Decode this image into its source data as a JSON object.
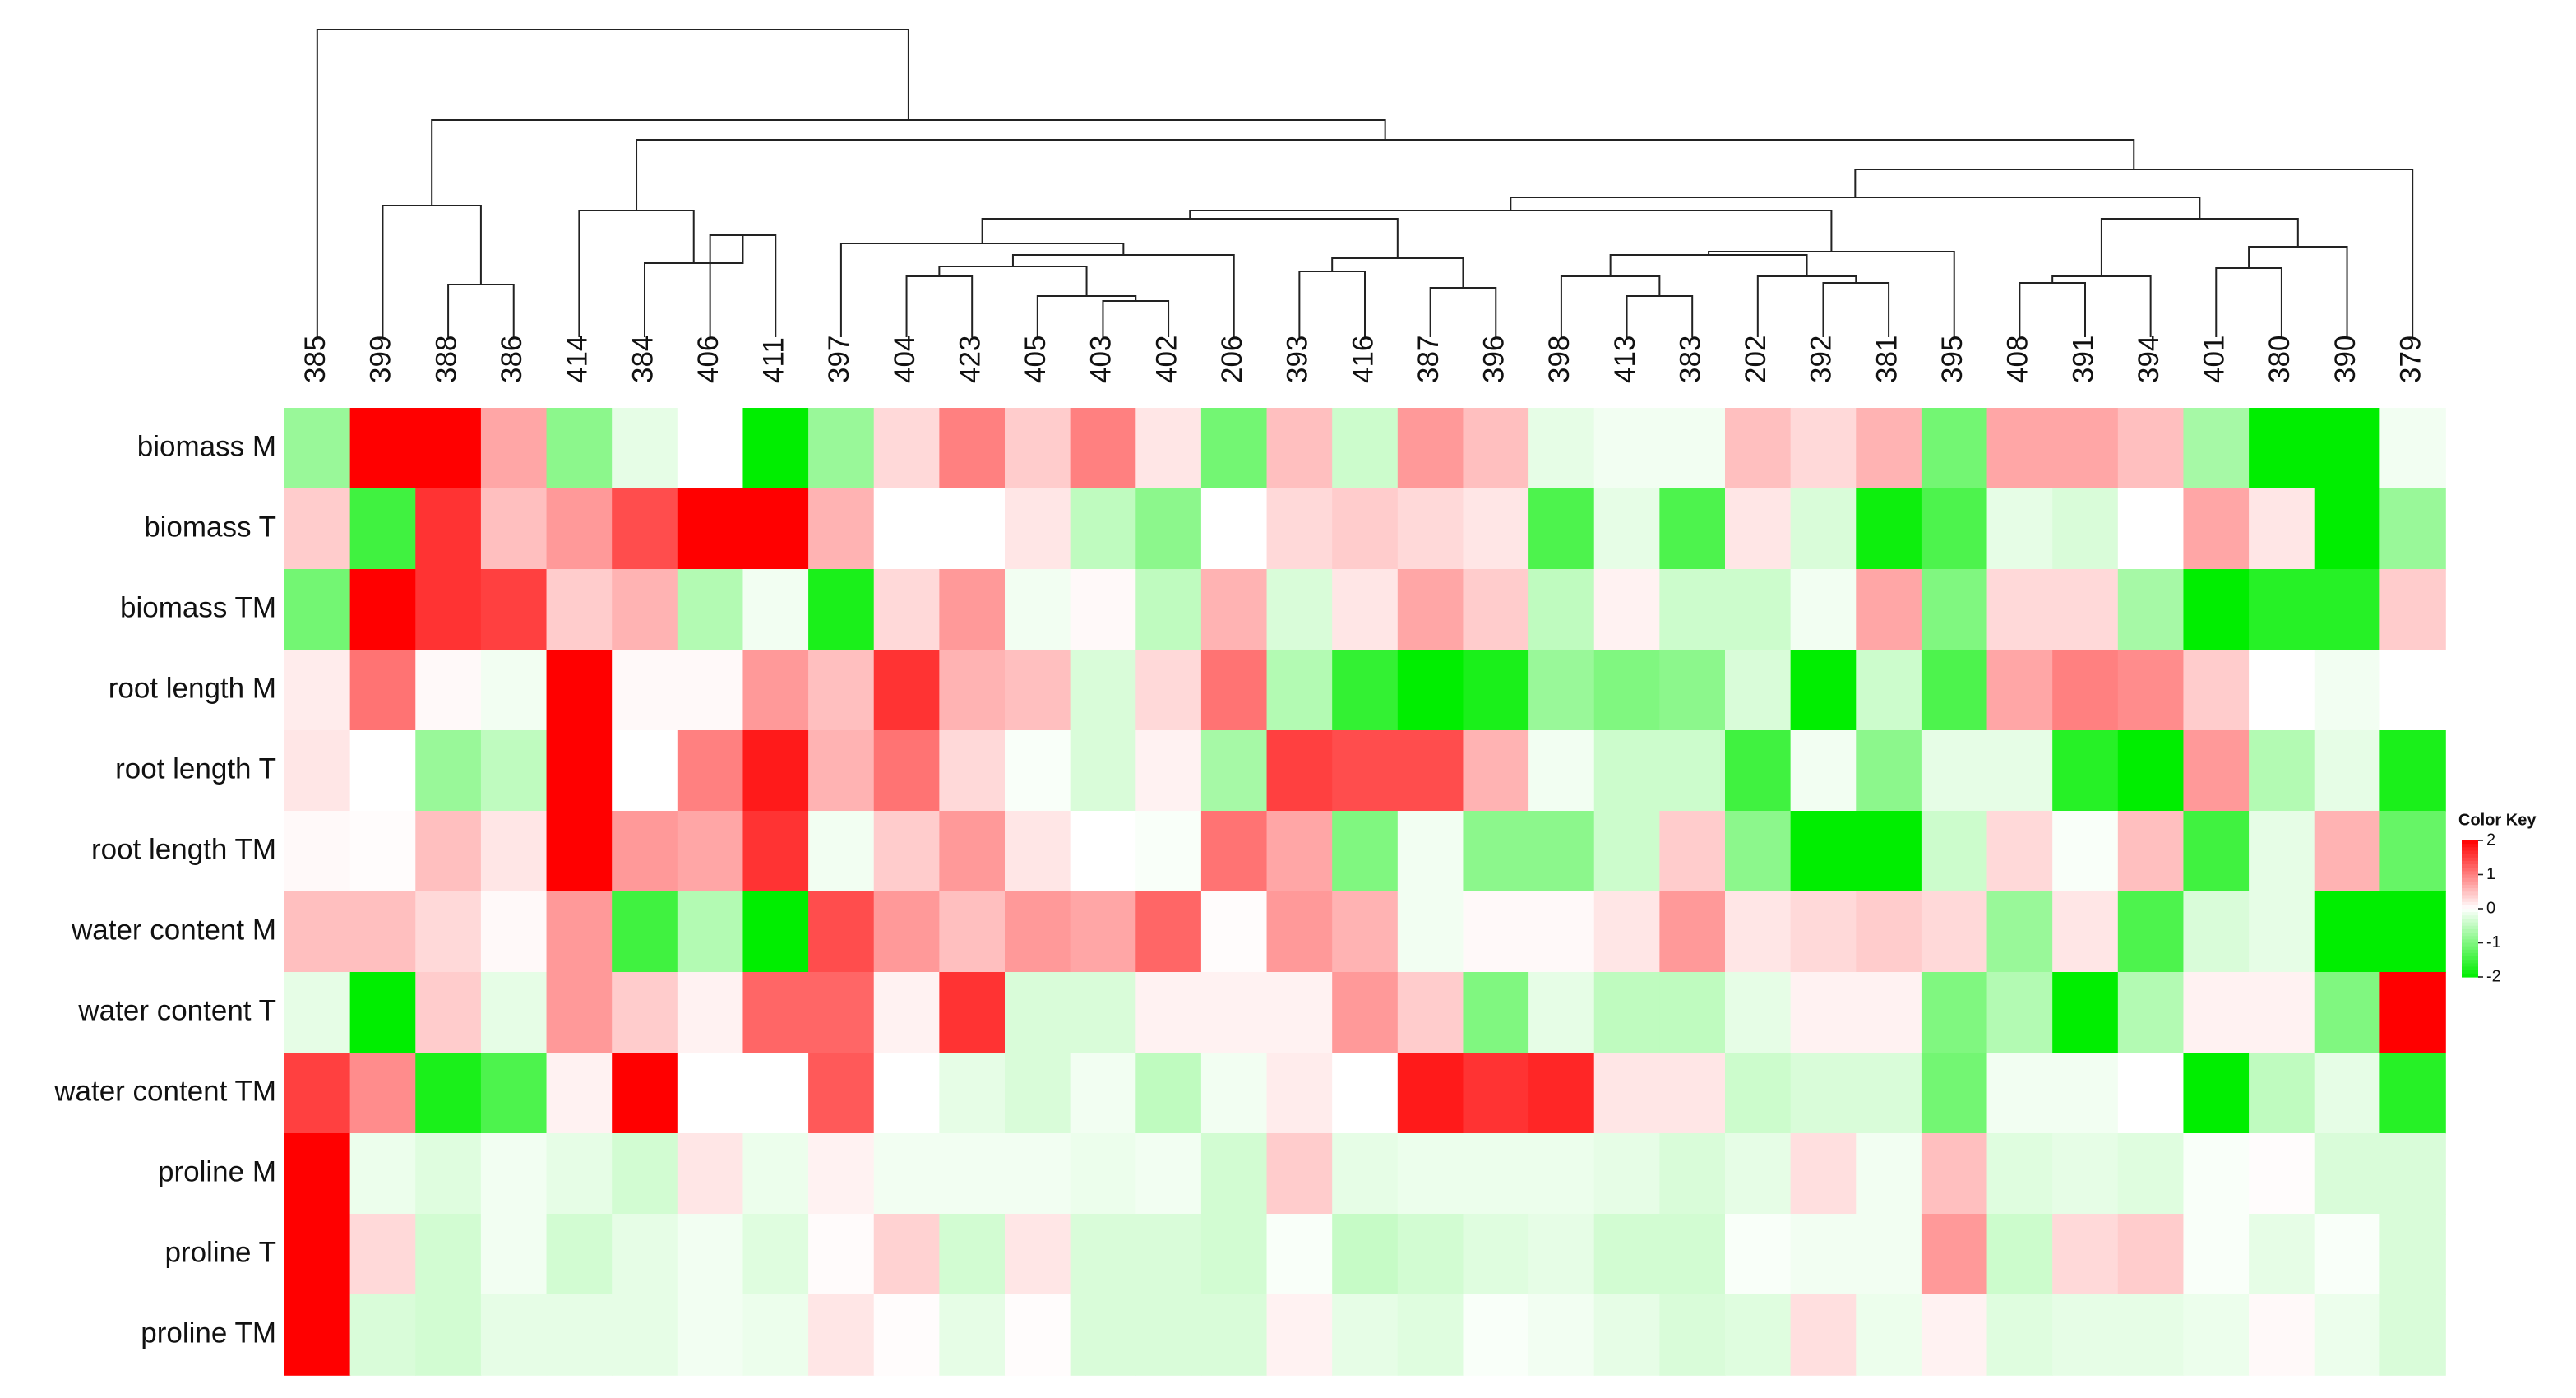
{
  "chart_data": {
    "type": "heatmap",
    "columns": [
      "385",
      "399",
      "388",
      "386",
      "414",
      "384",
      "406",
      "411",
      "397",
      "404",
      "423",
      "405",
      "403",
      "402",
      "206",
      "393",
      "416",
      "387",
      "396",
      "398",
      "413",
      "383",
      "202",
      "392",
      "381",
      "395",
      "408",
      "391",
      "394",
      "401",
      "380",
      "390",
      "379"
    ],
    "rows": [
      "biomass M",
      "biomass T",
      "biomass TM",
      "root length M",
      "root length T",
      "root length TM",
      "water content M",
      "water content T",
      "water content TM",
      "proline M",
      "proline T",
      "proline TM"
    ],
    "values": [
      [
        -0.8,
        2,
        2,
        0.7,
        -0.9,
        -0.2,
        0,
        -2,
        -0.8,
        0.3,
        1.0,
        0.4,
        1.0,
        0.2,
        -1.1,
        0.5,
        -0.4,
        0.8,
        0.5,
        -0.2,
        -0.1,
        -0.1,
        0.5,
        0.3,
        0.6,
        -1.1,
        0.7,
        0.7,
        0.5,
        -0.7,
        -2,
        -2,
        -0.1
      ],
      [
        0.4,
        -1.5,
        1.6,
        0.5,
        0.8,
        1.4,
        2,
        2,
        0.6,
        0,
        0,
        0.2,
        -0.5,
        -0.9,
        0,
        0.3,
        0.4,
        0.3,
        0.2,
        -1.4,
        -0.2,
        -1.4,
        0.2,
        -0.3,
        -1.9,
        -1.4,
        -0.2,
        -0.3,
        0,
        0.7,
        0.2,
        -2,
        -0.8
      ],
      [
        -1.1,
        2,
        1.6,
        1.5,
        0.4,
        0.6,
        -0.6,
        -0.1,
        -1.8,
        0.3,
        0.8,
        -0.1,
        0.05,
        -0.5,
        0.6,
        -0.3,
        0.2,
        0.7,
        0.4,
        -0.5,
        0.1,
        -0.4,
        -0.4,
        -0.1,
        0.7,
        -1.0,
        0.3,
        0.3,
        -0.7,
        -2,
        -1.7,
        -1.7,
        0.4
      ],
      [
        0.15,
        1.1,
        0.05,
        -0.1,
        2,
        0.05,
        0.05,
        0.8,
        0.5,
        1.6,
        0.6,
        0.5,
        -0.3,
        0.3,
        1.1,
        -0.6,
        -1.6,
        -2,
        -1.8,
        -0.8,
        -1.0,
        -0.9,
        -0.3,
        -2,
        -0.4,
        -1.4,
        0.7,
        1.0,
        0.9,
        0.4,
        0,
        -0.1,
        0
      ],
      [
        0.2,
        0,
        -0.8,
        -0.5,
        2,
        0,
        1.0,
        1.8,
        0.6,
        1.1,
        0.3,
        -0.05,
        -0.3,
        0.1,
        -0.7,
        1.5,
        1.4,
        1.4,
        0.6,
        -0.1,
        -0.4,
        -0.4,
        -1.5,
        -0.1,
        -0.9,
        -0.2,
        -0.2,
        -1.7,
        -2,
        0.8,
        -0.6,
        -0.2,
        -1.8
      ],
      [
        0.05,
        0.02,
        0.5,
        0.2,
        2,
        0.8,
        0.7,
        1.6,
        -0.1,
        0.4,
        0.8,
        0.2,
        0,
        -0.05,
        1.1,
        0.7,
        -1.0,
        -0.1,
        -0.9,
        -0.9,
        -0.4,
        0.4,
        -0.9,
        -2,
        -2,
        -0.4,
        0.3,
        -0.05,
        0.5,
        -1.5,
        -0.2,
        0.6,
        -1.2
      ],
      [
        0.5,
        0.5,
        0.3,
        0.05,
        0.8,
        -1.5,
        -0.6,
        -2,
        1.4,
        0.8,
        0.5,
        0.8,
        0.7,
        1.2,
        0.02,
        0.8,
        0.6,
        -0.1,
        0.05,
        0.05,
        0.2,
        0.8,
        0.2,
        0.3,
        0.4,
        0.3,
        -0.8,
        0.2,
        -1.4,
        -0.3,
        -0.2,
        -2,
        -2
      ],
      [
        -0.2,
        -2,
        0.4,
        -0.2,
        0.8,
        0.4,
        0.1,
        1.2,
        1.2,
        0.1,
        1.6,
        -0.3,
        -0.3,
        0.1,
        0.1,
        0.1,
        0.8,
        0.4,
        -1.0,
        -0.2,
        -0.5,
        -0.5,
        -0.2,
        0.1,
        0.1,
        -1.0,
        -0.6,
        -2,
        -0.6,
        0.1,
        0.1,
        -1.0,
        2
      ],
      [
        1.5,
        0.9,
        -1.8,
        -1.4,
        0.1,
        2,
        0,
        0,
        1.3,
        0,
        -0.2,
        -0.3,
        -0.1,
        -0.5,
        -0.1,
        0.15,
        0,
        1.8,
        1.6,
        1.7,
        0.2,
        0.2,
        -0.4,
        -0.3,
        -0.3,
        -1.1,
        -0.1,
        -0.1,
        0,
        -2,
        -0.5,
        -0.2,
        -1.7
      ],
      [
        2,
        -0.15,
        -0.25,
        -0.1,
        -0.2,
        -0.35,
        0.2,
        -0.15,
        0.1,
        -0.1,
        -0.1,
        -0.1,
        -0.15,
        -0.1,
        -0.35,
        0.4,
        -0.2,
        -0.15,
        -0.15,
        -0.15,
        -0.2,
        -0.3,
        -0.2,
        0.25,
        -0.1,
        0.5,
        -0.25,
        -0.2,
        -0.25,
        -0.05,
        0.02,
        -0.3,
        -0.3
      ],
      [
        2,
        0.3,
        -0.35,
        -0.1,
        -0.35,
        -0.2,
        -0.1,
        -0.25,
        0.03,
        0.35,
        -0.35,
        0.2,
        -0.3,
        -0.3,
        -0.35,
        -0.05,
        -0.45,
        -0.35,
        -0.25,
        -0.2,
        -0.35,
        -0.35,
        -0.05,
        -0.1,
        -0.1,
        0.8,
        -0.4,
        0.3,
        0.4,
        -0.05,
        -0.2,
        -0.05,
        -0.3
      ],
      [
        2,
        -0.3,
        -0.35,
        -0.2,
        -0.2,
        -0.2,
        -0.1,
        -0.15,
        0.2,
        0.02,
        -0.2,
        0.02,
        -0.3,
        -0.3,
        -0.3,
        0.1,
        -0.2,
        -0.25,
        -0.05,
        -0.1,
        -0.2,
        -0.3,
        -0.25,
        0.25,
        -0.15,
        0.1,
        -0.25,
        -0.2,
        -0.2,
        -0.15,
        0.05,
        -0.15,
        -0.3
      ]
    ],
    "colormap": {
      "low": "#00ee00",
      "mid": "#ffffff",
      "high": "#ff0000"
    },
    "color_key": {
      "title": "Color Key",
      "zlim": [
        -2,
        2
      ],
      "zticks": [
        2,
        1,
        0,
        -1,
        -2
      ]
    }
  }
}
